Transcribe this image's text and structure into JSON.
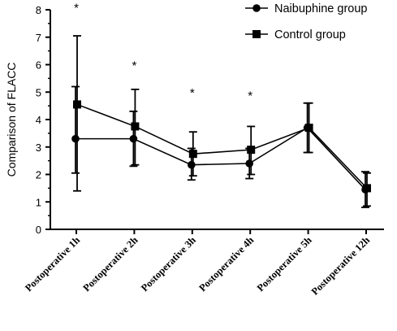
{
  "chart_data": {
    "type": "line",
    "title": "",
    "xlabel": "",
    "ylabel": "Comparison of FLACC",
    "ylim": [
      0,
      8
    ],
    "yticks": [
      0,
      1,
      2,
      3,
      4,
      5,
      6,
      7,
      8
    ],
    "grid": false,
    "legend_position": "top-right",
    "categories": [
      "Postoperative 1h",
      "Postoperative 2h",
      "Postoperative 3h",
      "Postoperative 4h",
      "Postoperative 5h",
      "Postoperative 12h"
    ],
    "series": [
      {
        "name": "Naibuphine group",
        "marker": "circle",
        "color": "#000000",
        "values": [
          3.3,
          3.3,
          2.35,
          2.4,
          3.7,
          1.45
        ],
        "err_low": [
          2.05,
          2.3,
          1.8,
          1.85,
          2.8,
          0.8
        ],
        "err_high": [
          5.2,
          4.3,
          2.95,
          2.95,
          4.6,
          2.1
        ]
      },
      {
        "name": "Control group",
        "marker": "square",
        "color": "#000000",
        "values": [
          4.55,
          3.75,
          2.75,
          2.9,
          3.7,
          1.5
        ],
        "err_low": [
          1.4,
          2.35,
          1.95,
          2.0,
          2.8,
          0.85
        ],
        "err_high": [
          7.05,
          5.1,
          3.55,
          3.75,
          4.6,
          2.05
        ]
      }
    ],
    "annotations": [
      {
        "category": "Postoperative 1h",
        "text": "*",
        "y": 8.25
      },
      {
        "category": "Postoperative 2h",
        "text": "*",
        "y": 6.15
      },
      {
        "category": "Postoperative 3h",
        "text": "*",
        "y": 5.15
      },
      {
        "category": "Postoperative 4h",
        "text": "*",
        "y": 5.05
      }
    ]
  }
}
